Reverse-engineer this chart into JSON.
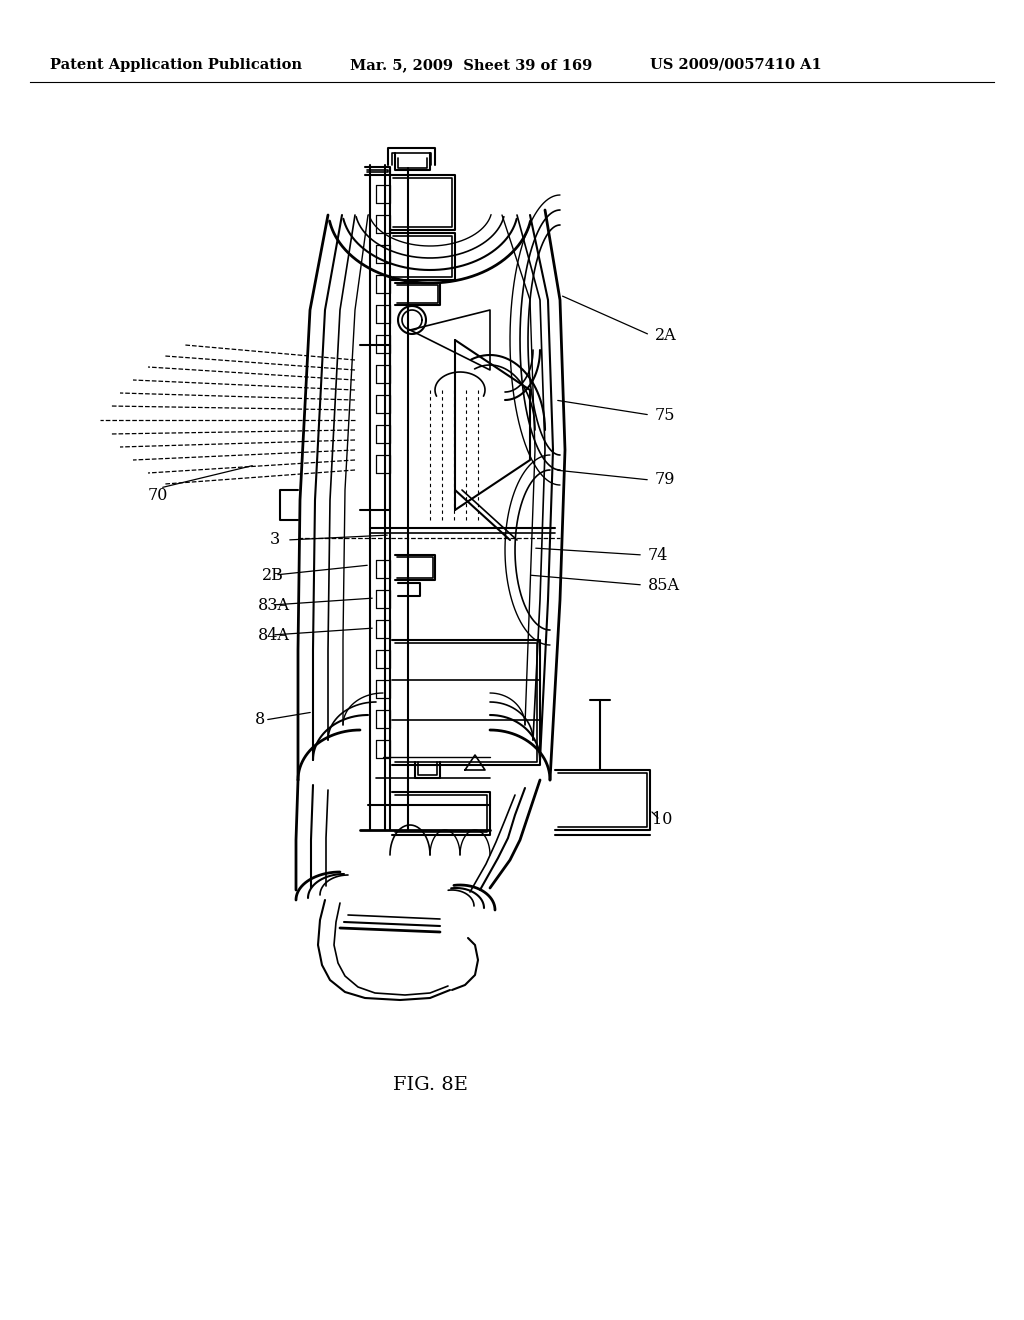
{
  "background_color": "#ffffff",
  "header_left": "Patent Application Publication",
  "header_mid": "Mar. 5, 2009  Sheet 39 of 169",
  "header_right": "US 2009/0057410 A1",
  "figure_label": "FIG. 8E"
}
